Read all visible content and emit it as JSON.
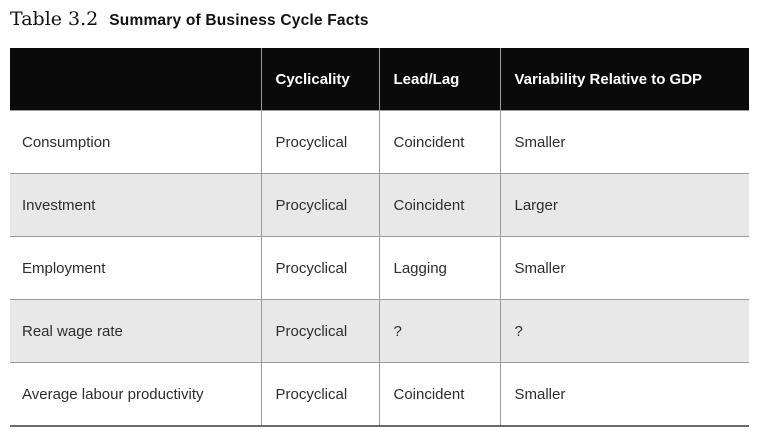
{
  "title": {
    "number": "Table 3.2",
    "text": "Summary of Business Cycle Facts"
  },
  "table": {
    "columns": [
      "",
      "Cyclicality",
      "Lead/Lag",
      "Variability Relative to GDP"
    ],
    "rows": [
      {
        "label": "Consumption",
        "cyclicality": "Procyclical",
        "lead_lag": "Coincident",
        "variability": "Smaller"
      },
      {
        "label": "Investment",
        "cyclicality": "Procyclical",
        "lead_lag": "Coincident",
        "variability": "Larger"
      },
      {
        "label": "Employment",
        "cyclicality": "Procyclical",
        "lead_lag": "Lagging",
        "variability": "Smaller"
      },
      {
        "label": "Real wage rate",
        "cyclicality": "Procyclical",
        "lead_lag": "?",
        "variability": "?"
      },
      {
        "label": "Average labour productivity",
        "cyclicality": "Procyclical",
        "lead_lag": "Coincident",
        "variability": "Smaller"
      }
    ]
  },
  "colors": {
    "header_background": "#0a0a0a",
    "header_text": "#ffffff",
    "alt_row_background": "#e8e8e8",
    "grid_line": "#9b9b9b",
    "bottom_rule": "#6b6b6b",
    "body_text": "#2d2d2d"
  }
}
